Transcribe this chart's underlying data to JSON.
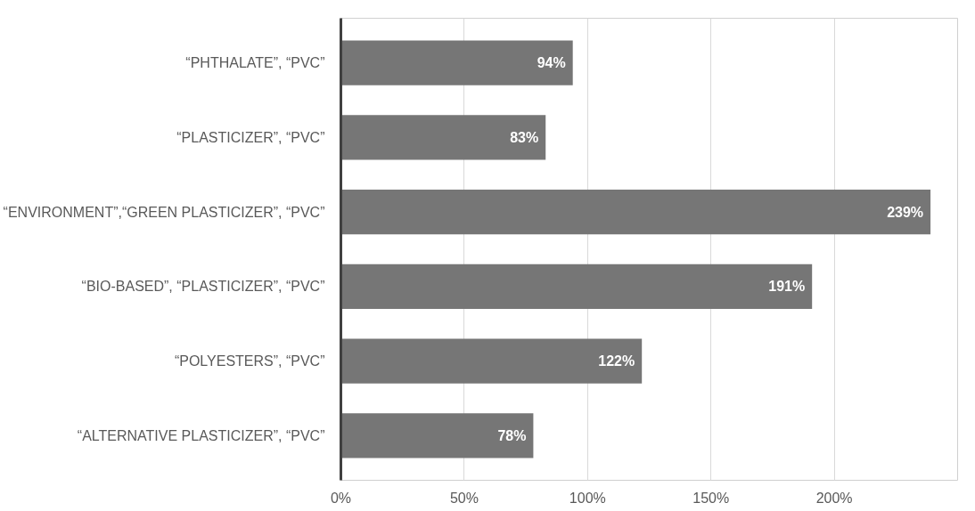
{
  "chart_data": {
    "type": "bar",
    "orientation": "horizontal",
    "categories": [
      "“PHTHALATE”, “PVC”",
      "“PLASTICIZER”, “PVC”",
      "“ENVIRONMENT”,“GREEN PLASTICIZER”, “PVC”",
      "“BIO-BASED”, “PLASTICIZER”, “PVC”",
      "“POLYESTERS”, “PVC”",
      "“ALTERNATIVE PLASTICIZER”, “PVC”"
    ],
    "values": [
      94,
      83,
      239,
      191,
      122,
      78
    ],
    "value_labels": [
      "94%",
      "83%",
      "239%",
      "191%",
      "122%",
      "78%"
    ],
    "color": "#767676",
    "xlim": [
      0,
      250
    ],
    "xticks": [
      {
        "value": 0,
        "label": "0%"
      },
      {
        "value": 50,
        "label": "50%"
      },
      {
        "value": 100,
        "label": "100%"
      },
      {
        "value": 150,
        "label": "150%"
      },
      {
        "value": 200,
        "label": "200%"
      }
    ],
    "grid": "x"
  }
}
